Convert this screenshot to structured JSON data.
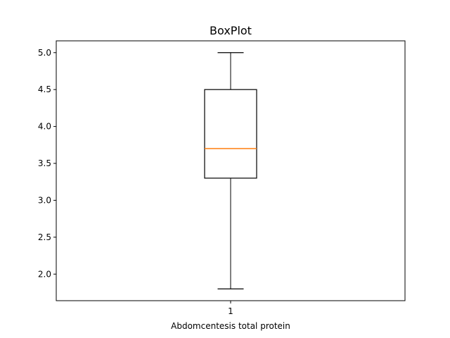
{
  "chart_data": {
    "type": "boxplot",
    "title": "BoxPlot",
    "xlabel": "Abdomcentesis total protein",
    "ylabel": "",
    "categories": [
      "1"
    ],
    "boxes": [
      {
        "category": "1",
        "whisker_low": 1.8,
        "q1": 3.3,
        "median": 3.7,
        "q3": 4.5,
        "whisker_high": 5.0
      }
    ],
    "ylim": [
      1.64,
      5.16
    ],
    "yticks": [
      2.0,
      2.5,
      3.0,
      3.5,
      4.0,
      4.5,
      5.0
    ],
    "ytick_labels": [
      "2.0",
      "2.5",
      "3.0",
      "3.5",
      "4.0",
      "4.5",
      "5.0"
    ],
    "grid": false,
    "colors": {
      "box": "#000000",
      "median": "#ff7f0e",
      "whisker": "#000000"
    }
  }
}
